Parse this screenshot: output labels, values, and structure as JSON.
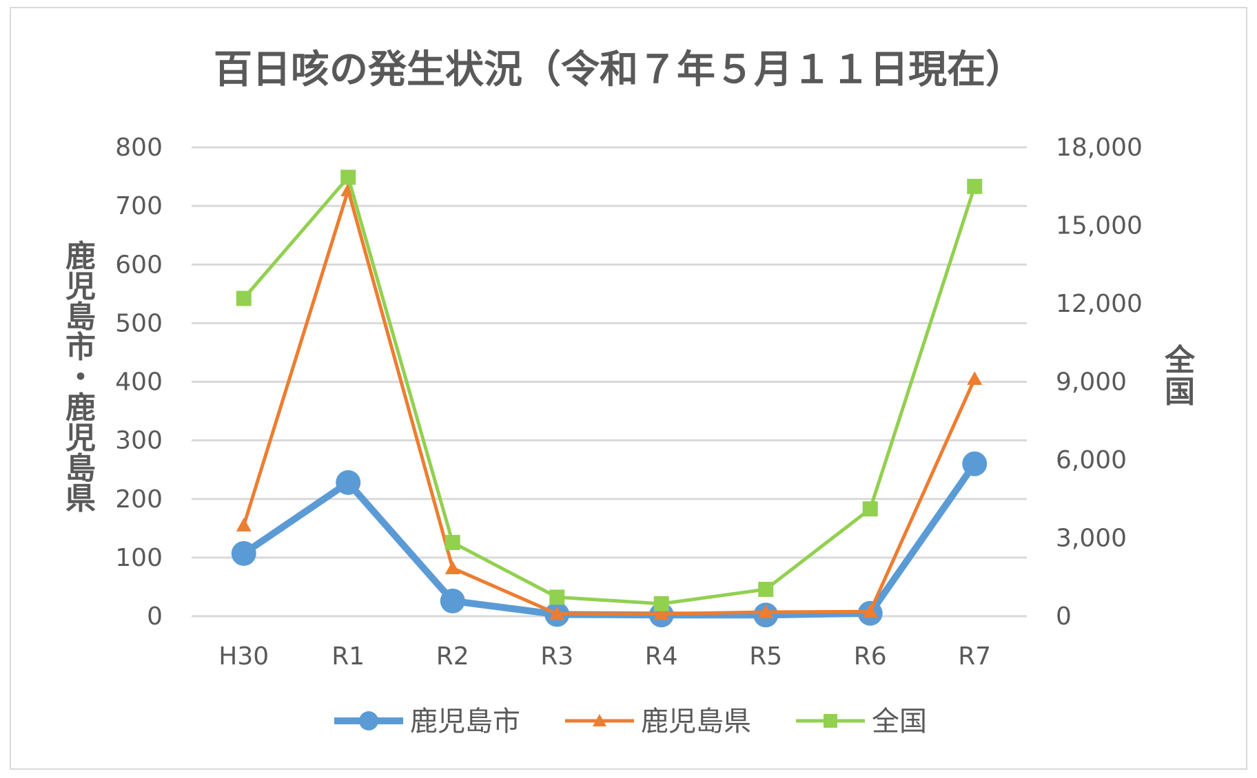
{
  "chart_data": {
    "type": "line",
    "title": "百日咳の発生状況（令和７年５月１１日現在）",
    "categories": [
      "H30",
      "R1",
      "R2",
      "R3",
      "R4",
      "R5",
      "R6",
      "R7"
    ],
    "ylabel_left": "鹿児島市・鹿児島県",
    "ylabel_right": "全国",
    "ylim_left": [
      0,
      800
    ],
    "ylim_right": [
      0,
      18000
    ],
    "yticks_left": [
      "0",
      "100",
      "200",
      "300",
      "400",
      "500",
      "600",
      "700",
      "800"
    ],
    "yticks_right": [
      "0",
      "3,000",
      "6,000",
      "9,000",
      "12,000",
      "15,000",
      "18,000"
    ],
    "grid": true,
    "legend_position": "bottom",
    "series": [
      {
        "name": "鹿児島市",
        "axis": "left",
        "color": "#5b9bd5",
        "marker": "circle",
        "values": [
          107,
          228,
          26,
          3,
          2,
          2,
          5,
          260
        ]
      },
      {
        "name": "鹿児島県",
        "axis": "left",
        "color": "#ed7d31",
        "marker": "triangle",
        "values": [
          155,
          727,
          82,
          4,
          4,
          7,
          8,
          405
        ]
      },
      {
        "name": "全国",
        "axis": "right",
        "color": "#92d050",
        "marker": "square",
        "values": [
          12200,
          16850,
          2830,
          730,
          480,
          1030,
          4120,
          16500
        ]
      }
    ]
  }
}
